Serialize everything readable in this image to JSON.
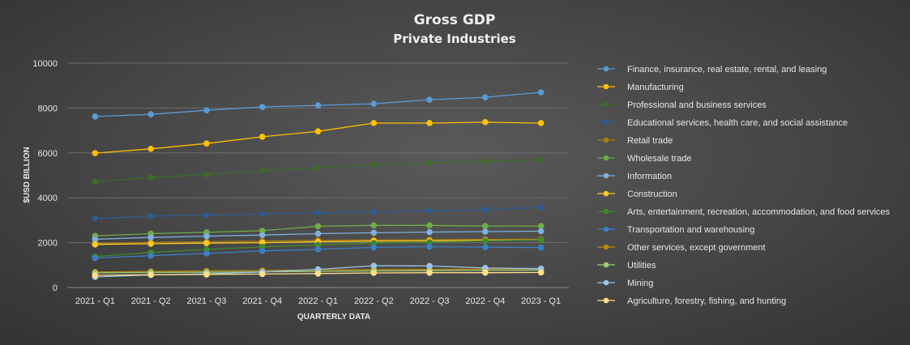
{
  "chart_data": {
    "type": "line",
    "title": "Gross  GDP",
    "subtitle": "Private Industries",
    "xlabel": "QUARTERLY DATA",
    "ylabel": "$USD BILLION",
    "ylim": [
      0,
      10000
    ],
    "yticks": [
      0,
      2000,
      4000,
      6000,
      8000,
      10000
    ],
    "grid": true,
    "legend_position": "right",
    "categories": [
      "2021 - Q1",
      "2021 - Q2",
      "2021 - Q3",
      "2021 - Q4",
      "2022 - Q1",
      "2022 - Q2",
      "2022 - Q3",
      "2022 - Q4",
      "2023 - Q1"
    ],
    "series": [
      {
        "name": "Finance, insurance, real estate, rental, and leasing",
        "color": "#5b9bd5",
        "values": [
          7620,
          7720,
          7900,
          8050,
          8120,
          8190,
          8370,
          8480,
          8700
        ]
      },
      {
        "name": "Manufacturing",
        "color": "#ffc000",
        "values": [
          5990,
          6180,
          6420,
          6720,
          6960,
          7330,
          7330,
          7370,
          7330
        ]
      },
      {
        "name": "Professional and business services",
        "color": "#3e6b29",
        "values": [
          4720,
          4900,
          5040,
          5200,
          5330,
          5480,
          5560,
          5630,
          5700
        ]
      },
      {
        "name": "Educational services, health care, and social assistance",
        "color": "#2e5d91",
        "values": [
          3070,
          3180,
          3230,
          3280,
          3330,
          3370,
          3420,
          3470,
          3570
        ]
      },
      {
        "name": "Retail trade",
        "color": "#a87d0f",
        "values": [
          1960,
          2010,
          2040,
          2070,
          2100,
          2120,
          2130,
          2140,
          2150
        ]
      },
      {
        "name": "Wholesale trade",
        "color": "#70ad47",
        "values": [
          2300,
          2400,
          2460,
          2530,
          2730,
          2770,
          2770,
          2740,
          2740
        ]
      },
      {
        "name": "Information",
        "color": "#7fb0de",
        "values": [
          2150,
          2230,
          2290,
          2340,
          2400,
          2440,
          2470,
          2490,
          2510
        ]
      },
      {
        "name": "Construction",
        "color": "#ffc727",
        "values": [
          1920,
          1950,
          1980,
          2000,
          2040,
          2070,
          2080,
          2100,
          2120
        ]
      },
      {
        "name": "Arts, entertainment, recreation, accommodation, and food services",
        "color": "#3f8a2a",
        "values": [
          1380,
          1560,
          1700,
          1810,
          1900,
          1980,
          2020,
          2080,
          2120
        ]
      },
      {
        "name": "Transportation and warehousing",
        "color": "#3c7fc4",
        "values": [
          1310,
          1420,
          1520,
          1630,
          1700,
          1790,
          1820,
          1800,
          1780
        ]
      },
      {
        "name": "Other services, except government",
        "color": "#b8860b",
        "values": [
          690,
          720,
          740,
          760,
          780,
          800,
          810,
          820,
          830
        ]
      },
      {
        "name": "Utilities",
        "color": "#9acd7a",
        "values": [
          650,
          670,
          680,
          700,
          720,
          740,
          750,
          760,
          780
        ]
      },
      {
        "name": "Mining",
        "color": "#9cc3e6",
        "values": [
          470,
          560,
          610,
          690,
          810,
          970,
          960,
          870,
          840
        ]
      },
      {
        "name": "Agriculture, forestry, fishing, and hunting",
        "color": "#ffe08a",
        "values": [
          540,
          570,
          580,
          600,
          620,
          650,
          660,
          660,
          670
        ]
      }
    ]
  }
}
